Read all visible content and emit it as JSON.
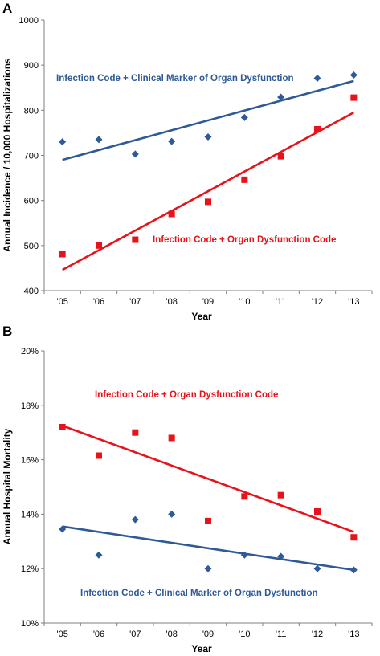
{
  "chart_data": [
    {
      "panel": "A",
      "type": "scatter",
      "xlabel": "Year",
      "ylabel": "Annual Incidence / 10,000 Hospitalizations",
      "categories": [
        "'05",
        "'06",
        "'07",
        "'08",
        "'09",
        "'10",
        "'11",
        "'12",
        "'13"
      ],
      "ylim": [
        400,
        1000
      ],
      "yticks": [
        400,
        500,
        600,
        700,
        800,
        900,
        1000
      ],
      "ytick_labels": [
        "400",
        "500",
        "600",
        "700",
        "800",
        "900",
        "1000"
      ],
      "grid": false,
      "series": [
        {
          "label": "Infection Code + Clinical Marker of Organ Dysfunction",
          "color": "#2E5A96",
          "marker": "diamond",
          "values": [
            730,
            735,
            703,
            731,
            741,
            784,
            829,
            871,
            878
          ],
          "trend": [
            690,
            865
          ]
        },
        {
          "label": "Infection Code + Organ Dysfunction Code",
          "color": "#E8131A",
          "marker": "square",
          "values": [
            481,
            500,
            513,
            570,
            597,
            646,
            698,
            758,
            828
          ],
          "trend": [
            446,
            795
          ]
        }
      ]
    },
    {
      "panel": "B",
      "type": "scatter",
      "xlabel": "Year",
      "ylabel": "Annual Hospital Mortality",
      "categories": [
        "'05",
        "'06",
        "'07",
        "'08",
        "'09",
        "'10",
        "'11",
        "'12",
        "'13"
      ],
      "ylim": [
        10,
        20
      ],
      "yticks": [
        10,
        12,
        14,
        16,
        18,
        20
      ],
      "ytick_labels": [
        "10%",
        "12%",
        "14%",
        "16%",
        "18%",
        "20%"
      ],
      "grid": false,
      "series": [
        {
          "label": "Infection Code + Organ Dysfunction Code",
          "color": "#E8131A",
          "marker": "square",
          "values": [
            17.2,
            16.15,
            17.0,
            16.8,
            13.75,
            14.65,
            14.7,
            14.1,
            13.15
          ],
          "trend": [
            17.25,
            13.35
          ]
        },
        {
          "label": "Infection Code + Clinical Marker of Organ Dysfunction",
          "color": "#2E5A96",
          "marker": "diamond",
          "values": [
            13.45,
            12.5,
            13.8,
            14.0,
            12.0,
            12.5,
            12.45,
            12.0,
            11.95
          ],
          "trend": [
            13.55,
            11.95
          ]
        }
      ]
    }
  ]
}
